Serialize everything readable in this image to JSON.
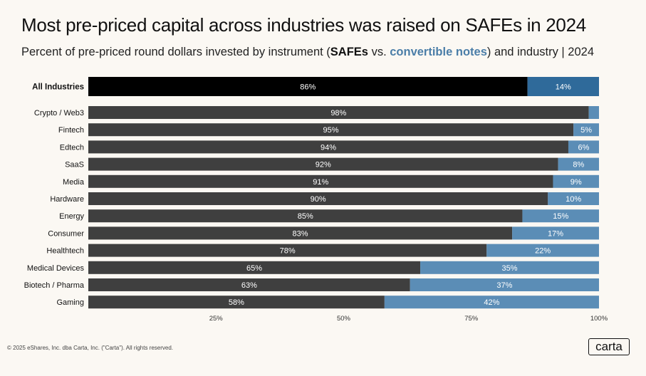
{
  "chart_data": {
    "type": "bar",
    "orientation": "horizontal",
    "stacked": true,
    "title": "Most pre-priced capital across industries was raised on SAFEs in 2024",
    "subtitle": {
      "before": "Percent of pre-priced round dollars invested by instrument (",
      "safes": "SAFEs",
      "vs": " vs. ",
      "notes": "convertible notes",
      "after": ") and industry | 2024"
    },
    "categories": [
      "All Industries",
      "Crypto / Web3",
      "Fintech",
      "Edtech",
      "SaaS",
      "Media",
      "Hardware",
      "Energy",
      "Consumer",
      "Healthtech",
      "Medical Devices",
      "Biotech / Pharma",
      "Gaming"
    ],
    "series": [
      {
        "name": "SAFEs",
        "values": [
          86,
          98,
          95,
          94,
          92,
          91,
          90,
          85,
          83,
          78,
          65,
          63,
          58
        ]
      },
      {
        "name": "Convertible notes",
        "values": [
          14,
          2,
          5,
          6,
          8,
          9,
          10,
          15,
          17,
          22,
          35,
          37,
          42
        ]
      }
    ],
    "value_labels": {
      "safes": [
        "86%",
        "98%",
        "95%",
        "94%",
        "92%",
        "91%",
        "90%",
        "85%",
        "83%",
        "78%",
        "65%",
        "63%",
        "58%"
      ],
      "notes": [
        "14%",
        "",
        "5%",
        "6%",
        "8%",
        "9%",
        "10%",
        "15%",
        "17%",
        "22%",
        "35%",
        "37%",
        "42%"
      ]
    },
    "x_ticks": [
      25,
      50,
      75,
      100
    ],
    "x_tick_labels": [
      "25%",
      "50%",
      "75%",
      "100%"
    ],
    "xlim": [
      0,
      100
    ],
    "highlight_category": "All Industries",
    "colors": {
      "safes": "#3f3f3f",
      "safes_highlight": "#000000",
      "notes": "#5b8db6",
      "notes_highlight": "#2f6a9a",
      "notes_text": "#4b7ea8"
    }
  },
  "footer": "© 2025 eShares, Inc. dba Carta, Inc. (\"Carta\"). All rights reserved.",
  "logo": "carta"
}
